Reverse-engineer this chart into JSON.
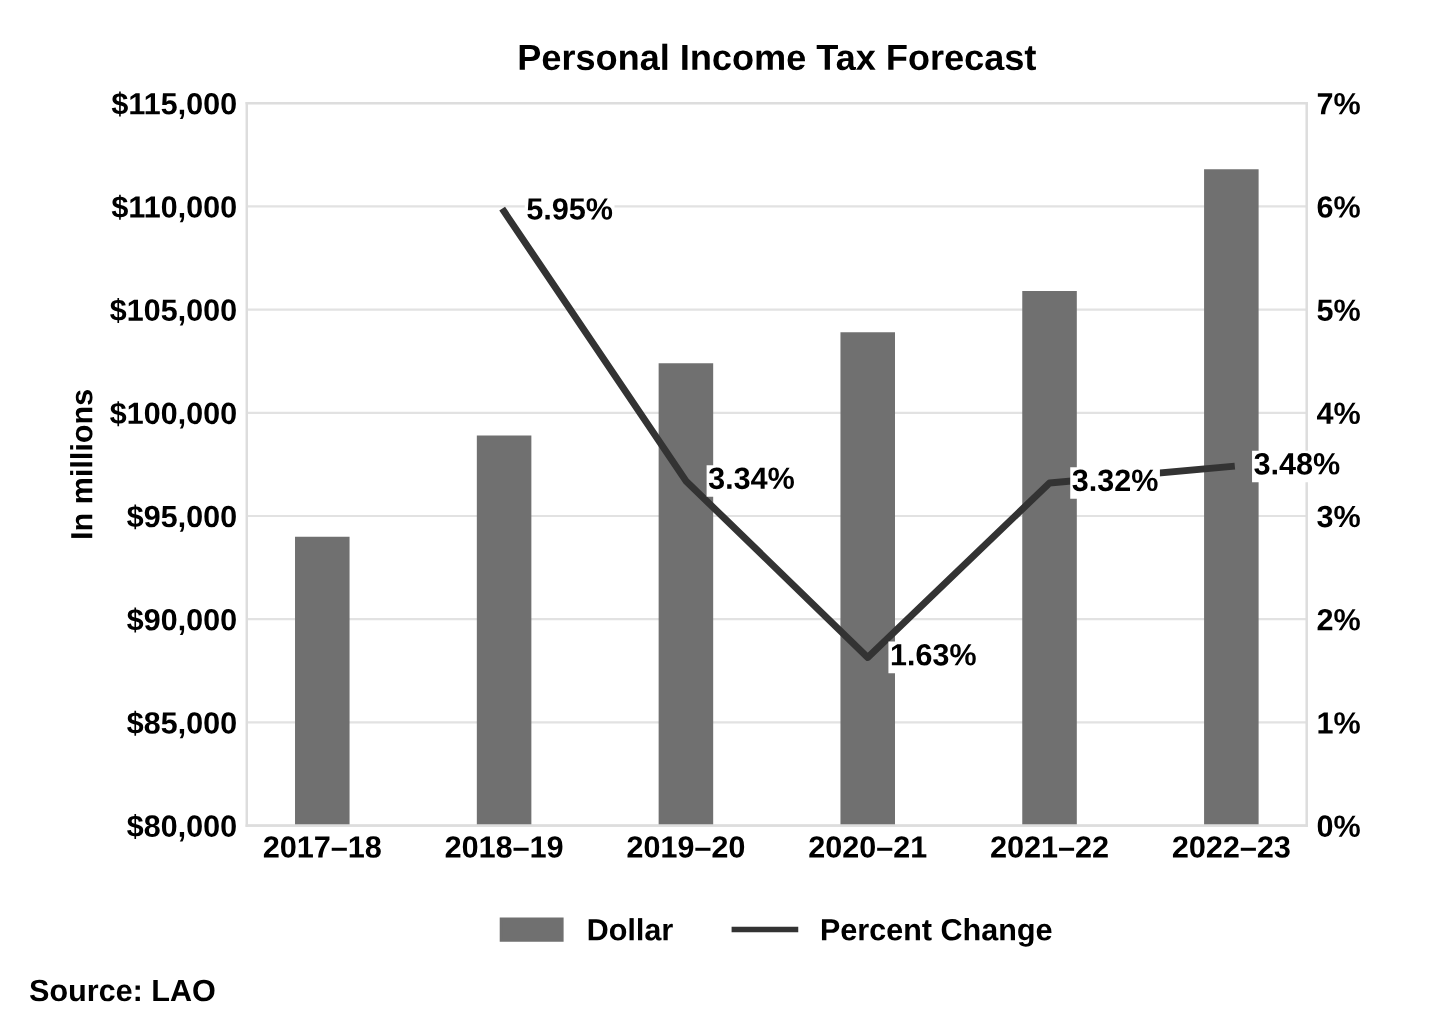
{
  "chart_data": {
    "type": "bar",
    "title": "Personal Income Tax Forecast",
    "ylabel": "In millions",
    "categories": [
      "2017–18",
      "2018–19",
      "2019–20",
      "2020–21",
      "2021–22",
      "2022–23"
    ],
    "series": [
      {
        "name": "Dollar",
        "color": "#707070",
        "values": [
          94000,
          98900,
          102400,
          103900,
          105900,
          111800
        ]
      },
      {
        "name": "Percent Change",
        "type": "line",
        "axis": "y2",
        "color": "#333333",
        "values": [
          null,
          5.95,
          3.34,
          1.63,
          3.32,
          3.48
        ],
        "value_labels": [
          null,
          "5.95%",
          "3.34%",
          "1.63%",
          "3.32%",
          "3.48%"
        ]
      }
    ],
    "ylim": [
      80000,
      115000
    ],
    "yticks": [
      {
        "value": 80000,
        "label": "$80,000"
      },
      {
        "value": 85000,
        "label": "$85,000"
      },
      {
        "value": 90000,
        "label": "$90,000"
      },
      {
        "value": 95000,
        "label": "$95,000"
      },
      {
        "value": 100000,
        "label": "$100,000"
      },
      {
        "value": 105000,
        "label": "$105,000"
      },
      {
        "value": 110000,
        "label": "$110,000"
      },
      {
        "value": 115000,
        "label": "$115,000"
      }
    ],
    "y2lim": [
      0,
      7
    ],
    "y2ticks": [
      {
        "value": 0,
        "label": "0%"
      },
      {
        "value": 1,
        "label": "1%"
      },
      {
        "value": 2,
        "label": "2%"
      },
      {
        "value": 3,
        "label": "3%"
      },
      {
        "value": 4,
        "label": "4%"
      },
      {
        "value": 5,
        "label": "5%"
      },
      {
        "value": 6,
        "label": "6%"
      },
      {
        "value": 7,
        "label": "7%"
      }
    ],
    "grid": "y",
    "legend": "bottom",
    "marker": "none",
    "line_style": "solid",
    "annotations": [
      "Source: LAO"
    ]
  }
}
